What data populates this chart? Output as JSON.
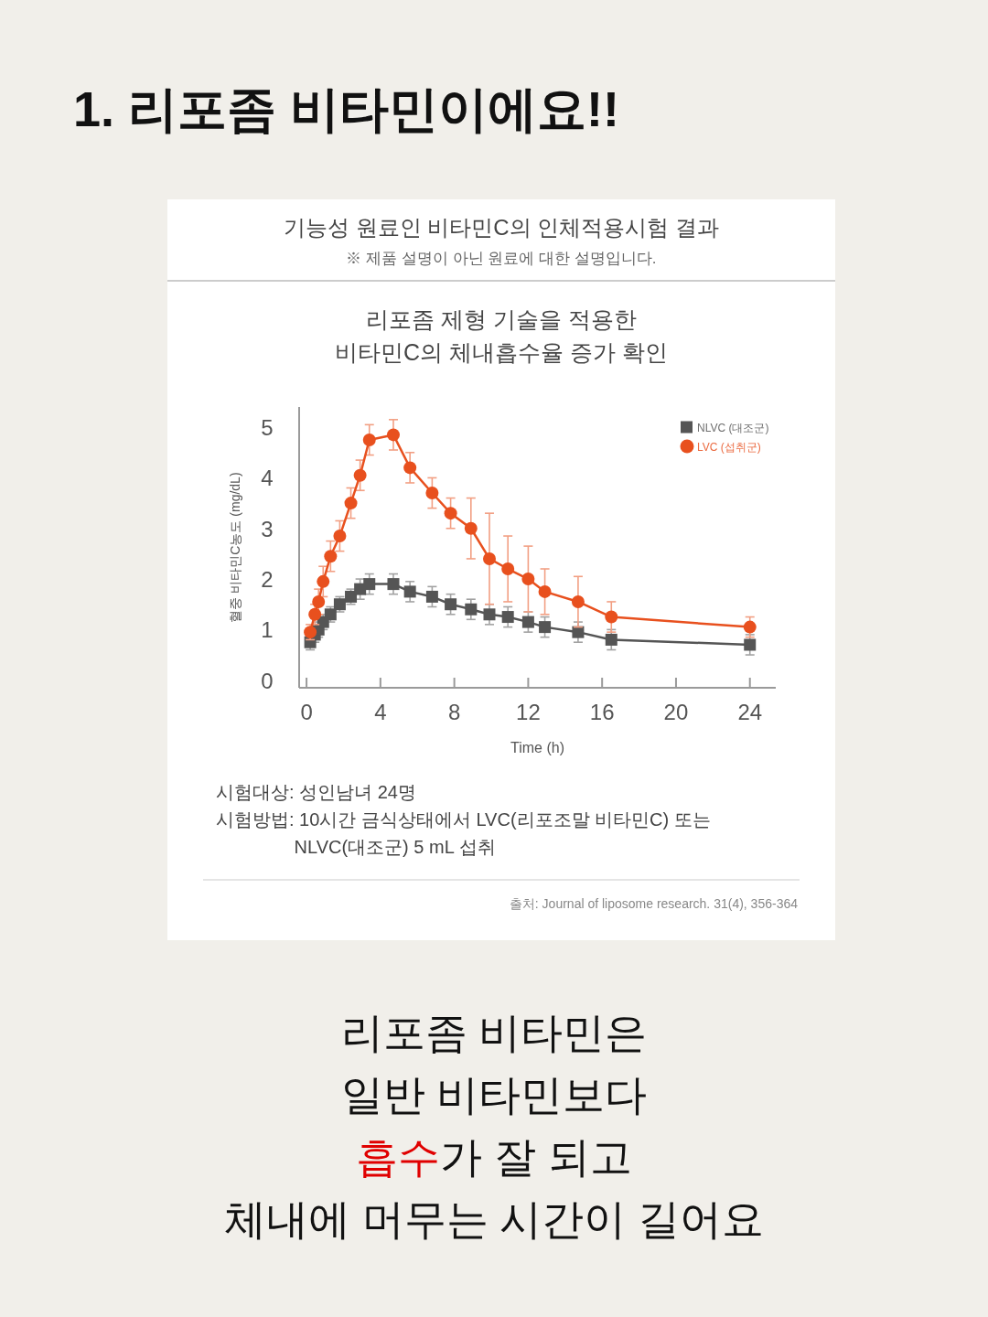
{
  "chart_data": {
    "type": "line",
    "title": "1. 리포좀 비타민이에요!!",
    "subtitle": "기능성 원료인 비타민C의 인체적용시험 결과",
    "annotations": [
      "※ 제품 설명이 아닌 원료에 대한 설명입니다.",
      "리포좀 제형 기술을 적용한\n비타민C의 체내흡수율 증가 확인",
      "시험대상: 성인남녀 24명",
      "시험방법: 10시간 금식상태에서 LVC(리포조말 비타민C) 또는\nNLVC(대조군) 5 mL 섭취",
      "출처: Journal of liposome research. 31(4), 356-364",
      "리포좀 비타민은\n일반 비타민보다\n**흡수**가 잘 되고\n체내에 머무는 시간이 길어요"
    ],
    "xlabel": "Time (h)",
    "ylabel": "혈중 비타민C농도 (mg/dL)",
    "x": [
      0.2,
      0.45,
      0.65,
      0.9,
      1.3,
      1.8,
      2.4,
      2.9,
      3.4,
      4.7,
      5.6,
      6.8,
      7.8,
      8.9,
      9.9,
      10.9,
      12,
      12.9,
      14.7,
      16.5,
      24
    ],
    "series": [
      {
        "name": "NLVC (대조군)",
        "color": "#555555",
        "marker": "square",
        "values": [
          0.75,
          0.9,
          1.0,
          1.15,
          1.3,
          1.5,
          1.65,
          1.8,
          1.9,
          1.9,
          1.75,
          1.65,
          1.5,
          1.4,
          1.3,
          1.25,
          1.15,
          1.05,
          0.95,
          0.8,
          0.7
        ],
        "errors": [
          0.15,
          0.15,
          0.15,
          0.15,
          0.15,
          0.15,
          0.15,
          0.2,
          0.2,
          0.2,
          0.2,
          0.2,
          0.2,
          0.2,
          0.2,
          0.2,
          0.2,
          0.2,
          0.2,
          0.2,
          0.2
        ]
      },
      {
        "name": "LVC (섭취군)",
        "color": "#e8501e",
        "marker": "circle",
        "values": [
          0.95,
          1.3,
          1.55,
          1.95,
          2.45,
          2.85,
          3.5,
          4.05,
          4.75,
          4.85,
          4.2,
          3.7,
          3.3,
          3.0,
          2.4,
          2.2,
          2.0,
          1.75,
          1.55,
          1.25,
          1.05
        ],
        "errors": [
          0.15,
          0.2,
          0.25,
          0.3,
          0.3,
          0.3,
          0.3,
          0.3,
          0.3,
          0.3,
          0.3,
          0.3,
          0.3,
          0.6,
          0.9,
          0.65,
          0.65,
          0.45,
          0.5,
          0.3,
          0.2
        ]
      }
    ],
    "xlim": [
      -0.4,
      25.4
    ],
    "xticks": [
      0,
      4,
      8,
      12,
      16,
      20,
      24
    ],
    "ylim": [
      -0.15,
      5.4
    ],
    "yticks": [
      0,
      1,
      2,
      3,
      4,
      5
    ],
    "legend": "top right",
    "line_style": "solid"
  }
}
